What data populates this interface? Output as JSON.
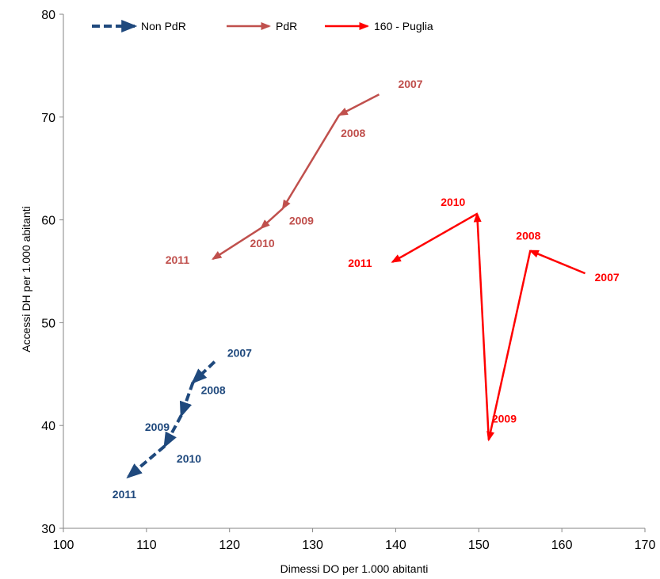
{
  "chart_data": {
    "type": "line",
    "xlabel": "Dimessi DO per 1.000 abitanti",
    "ylabel": "Accessi DH per 1.000 abitanti",
    "xlim": [
      100,
      170
    ],
    "ylim": [
      30,
      80
    ],
    "x_ticks": [
      100,
      110,
      120,
      130,
      140,
      150,
      160,
      170
    ],
    "y_ticks": [
      30,
      40,
      50,
      60,
      70,
      80
    ],
    "grid": false,
    "legend_position": "top",
    "series": [
      {
        "name": "Non PdR",
        "color": "#1F497D",
        "dash": true,
        "points": [
          {
            "year": "2007",
            "x": 118.2,
            "y": 46.2
          },
          {
            "year": "2008",
            "x": 115.6,
            "y": 44.2
          },
          {
            "year": "2009",
            "x": 114.2,
            "y": 41.0
          },
          {
            "year": "2010",
            "x": 112.2,
            "y": 38.0
          },
          {
            "year": "2011",
            "x": 107.8,
            "y": 35.0
          }
        ]
      },
      {
        "name": "PdR",
        "color": "#C0504D",
        "dash": false,
        "points": [
          {
            "year": "2007",
            "x": 138.0,
            "y": 72.2
          },
          {
            "year": "2008",
            "x": 133.2,
            "y": 70.2
          },
          {
            "year": "2009",
            "x": 126.4,
            "y": 61.1
          },
          {
            "year": "2010",
            "x": 123.8,
            "y": 59.2
          },
          {
            "year": "2011",
            "x": 118.0,
            "y": 56.2
          }
        ]
      },
      {
        "name": "160 - Puglia",
        "color": "#FF0000",
        "dash": false,
        "points": [
          {
            "year": "2007",
            "x": 162.8,
            "y": 54.8
          },
          {
            "year": "2008",
            "x": 156.2,
            "y": 57.0
          },
          {
            "year": "2009",
            "x": 151.2,
            "y": 38.6
          },
          {
            "year": "2010",
            "x": 149.8,
            "y": 60.6
          },
          {
            "year": "2011",
            "x": 139.6,
            "y": 55.9
          }
        ]
      }
    ]
  }
}
